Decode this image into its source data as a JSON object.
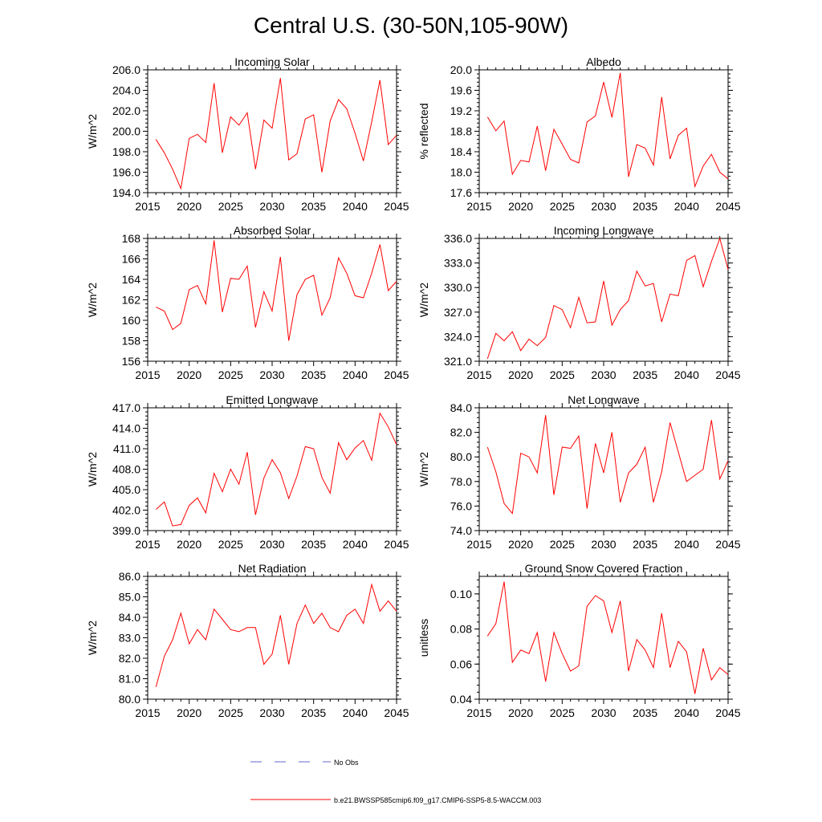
{
  "figure_title": "Central U.S. (30-50N,105-90W)",
  "legend": {
    "obs_label": "No Obs",
    "obs_color": "#6666cc",
    "model_label": "b.e21.BWSSP585cmip6.f09_g17.CMIP6-SSP5-8.5-WACCM.003",
    "model_color": "#ff0000"
  },
  "chart_data": [
    {
      "type": "line",
      "title": "Incoming Solar",
      "ylabel": "W/m^2",
      "xlabel": "",
      "xlim": [
        2015,
        2045
      ],
      "ylim": [
        194.0,
        206.0
      ],
      "yticks": [
        194.0,
        196.0,
        198.0,
        200.0,
        202.0,
        204.0,
        206.0
      ],
      "ytick_labels": [
        "194.0",
        "196.0",
        "198.0",
        "200.0",
        "202.0",
        "204.0",
        "206.0"
      ],
      "xticks": [
        2015,
        2020,
        2025,
        2030,
        2035,
        2040,
        2045
      ],
      "x": [
        2016,
        2017,
        2018,
        2019,
        2020,
        2021,
        2022,
        2023,
        2024,
        2025,
        2026,
        2027,
        2028,
        2029,
        2030,
        2031,
        2032,
        2033,
        2034,
        2035,
        2036,
        2037,
        2038,
        2039,
        2040,
        2041,
        2042,
        2043,
        2044,
        2045
      ],
      "series": [
        {
          "name": "b.e21.BWSSP585cmip6.f09_g17.CMIP6-SSP5-8.5-WACCM.003",
          "values": [
            199.2,
            197.9,
            196.3,
            194.4,
            199.3,
            199.7,
            198.9,
            204.7,
            197.9,
            201.4,
            200.6,
            201.8,
            196.3,
            201.1,
            200.3,
            205.2,
            197.2,
            197.8,
            201.2,
            201.6,
            196.0,
            201.0,
            203.1,
            202.2,
            199.8,
            197.1,
            200.9,
            205.0,
            198.7,
            199.6
          ]
        }
      ]
    },
    {
      "type": "line",
      "title": "Albedo",
      "ylabel": "% reflected",
      "xlabel": "",
      "xlim": [
        2015,
        2045
      ],
      "ylim": [
        17.6,
        20.0
      ],
      "yticks": [
        17.6,
        18.0,
        18.4,
        18.8,
        19.2,
        19.6,
        20.0
      ],
      "ytick_labels": [
        "17.6",
        "18.0",
        "18.4",
        "18.8",
        "19.2",
        "19.6",
        "20.0"
      ],
      "xticks": [
        2015,
        2020,
        2025,
        2030,
        2035,
        2040,
        2045
      ],
      "x": [
        2016,
        2017,
        2018,
        2019,
        2020,
        2021,
        2022,
        2023,
        2024,
        2025,
        2026,
        2027,
        2028,
        2029,
        2030,
        2031,
        2032,
        2033,
        2034,
        2035,
        2036,
        2037,
        2038,
        2039,
        2040,
        2041,
        2042,
        2043,
        2044,
        2045
      ],
      "series": [
        {
          "name": "b.e21.BWSSP585cmip6.f09_g17.CMIP6-SSP5-8.5-WACCM.003",
          "values": [
            19.08,
            18.81,
            19.0,
            17.96,
            18.23,
            18.2,
            18.9,
            18.03,
            18.84,
            18.55,
            18.25,
            18.18,
            18.98,
            19.1,
            19.76,
            19.07,
            19.94,
            17.91,
            18.54,
            18.47,
            18.14,
            19.47,
            18.26,
            18.72,
            18.86,
            17.72,
            18.12,
            18.35,
            18.0,
            17.87
          ]
        }
      ]
    },
    {
      "type": "line",
      "title": "Absorbed Solar",
      "ylabel": "W/m^2",
      "xlabel": "",
      "xlim": [
        2015,
        2045
      ],
      "ylim": [
        156,
        168
      ],
      "yticks": [
        156,
        158,
        160,
        162,
        164,
        166,
        168
      ],
      "ytick_labels": [
        "156",
        "158",
        "160",
        "162",
        "164",
        "166",
        "168"
      ],
      "xticks": [
        2015,
        2020,
        2025,
        2030,
        2035,
        2040,
        2045
      ],
      "x": [
        2016,
        2017,
        2018,
        2019,
        2020,
        2021,
        2022,
        2023,
        2024,
        2025,
        2026,
        2027,
        2028,
        2029,
        2030,
        2031,
        2032,
        2033,
        2034,
        2035,
        2036,
        2037,
        2038,
        2039,
        2040,
        2041,
        2042,
        2043,
        2044,
        2045
      ],
      "series": [
        {
          "name": "b.e21.BWSSP585cmip6.f09_g17.CMIP6-SSP5-8.5-WACCM.003",
          "values": [
            161.3,
            160.9,
            159.1,
            159.7,
            163.0,
            163.4,
            161.6,
            167.8,
            160.8,
            164.1,
            164.0,
            165.3,
            159.3,
            162.8,
            160.9,
            166.2,
            158.0,
            162.5,
            164.0,
            164.4,
            160.5,
            162.2,
            166.1,
            164.6,
            162.4,
            162.2,
            164.6,
            167.4,
            162.9,
            163.8
          ]
        }
      ]
    },
    {
      "type": "line",
      "title": "Incoming Longwave",
      "ylabel": "W/m^2",
      "xlabel": "",
      "xlim": [
        2015,
        2045
      ],
      "ylim": [
        321.0,
        336.0
      ],
      "yticks": [
        321.0,
        324.0,
        327.0,
        330.0,
        333.0,
        336.0
      ],
      "ytick_labels": [
        "321.0",
        "324.0",
        "327.0",
        "330.0",
        "333.0",
        "336.0"
      ],
      "xticks": [
        2015,
        2020,
        2025,
        2030,
        2035,
        2040,
        2045
      ],
      "x": [
        2016,
        2017,
        2018,
        2019,
        2020,
        2021,
        2022,
        2023,
        2024,
        2025,
        2026,
        2027,
        2028,
        2029,
        2030,
        2031,
        2032,
        2033,
        2034,
        2035,
        2036,
        2037,
        2038,
        2039,
        2040,
        2041,
        2042,
        2043,
        2044,
        2045
      ],
      "series": [
        {
          "name": "b.e21.BWSSP585cmip6.f09_g17.CMIP6-SSP5-8.5-WACCM.003",
          "values": [
            321.3,
            324.4,
            323.5,
            324.6,
            322.3,
            323.7,
            322.9,
            323.9,
            327.8,
            327.3,
            325.1,
            328.8,
            325.7,
            325.8,
            330.8,
            325.4,
            327.3,
            328.4,
            332.0,
            330.2,
            330.5,
            325.8,
            329.2,
            329.0,
            333.3,
            333.9,
            330.1,
            333.2,
            336.0,
            332.2
          ]
        }
      ]
    },
    {
      "type": "line",
      "title": "Emitted Longwave",
      "ylabel": "W/m^2",
      "xlabel": "",
      "xlim": [
        2015,
        2045
      ],
      "ylim": [
        399.0,
        417.0
      ],
      "yticks": [
        399.0,
        402.0,
        405.0,
        408.0,
        411.0,
        414.0,
        417.0
      ],
      "ytick_labels": [
        "399.0",
        "402.0",
        "405.0",
        "408.0",
        "411.0",
        "414.0",
        "417.0"
      ],
      "xticks": [
        2015,
        2020,
        2025,
        2030,
        2035,
        2040,
        2045
      ],
      "x": [
        2016,
        2017,
        2018,
        2019,
        2020,
        2021,
        2022,
        2023,
        2024,
        2025,
        2026,
        2027,
        2028,
        2029,
        2030,
        2031,
        2032,
        2033,
        2034,
        2035,
        2036,
        2037,
        2038,
        2039,
        2040,
        2041,
        2042,
        2043,
        2044,
        2045
      ],
      "series": [
        {
          "name": "b.e21.BWSSP585cmip6.f09_g17.CMIP6-SSP5-8.5-WACCM.003",
          "values": [
            402.1,
            403.2,
            399.7,
            399.9,
            402.7,
            403.8,
            401.6,
            407.4,
            404.7,
            408.0,
            405.8,
            410.5,
            401.3,
            406.7,
            409.4,
            407.5,
            403.7,
            407.0,
            411.3,
            411.0,
            406.8,
            404.5,
            411.9,
            409.4,
            411.1,
            412.2,
            409.3,
            416.2,
            414.2,
            411.6
          ]
        }
      ]
    },
    {
      "type": "line",
      "title": "Net Longwave",
      "ylabel": "W/m^2",
      "xlabel": "",
      "xlim": [
        2015,
        2045
      ],
      "ylim": [
        74.0,
        84.0
      ],
      "yticks": [
        74.0,
        76.0,
        78.0,
        80.0,
        82.0,
        84.0
      ],
      "ytick_labels": [
        "74.0",
        "76.0",
        "78.0",
        "80.0",
        "82.0",
        "84.0"
      ],
      "xticks": [
        2015,
        2020,
        2025,
        2030,
        2035,
        2040,
        2045
      ],
      "x": [
        2016,
        2017,
        2018,
        2019,
        2020,
        2021,
        2022,
        2023,
        2024,
        2025,
        2026,
        2027,
        2028,
        2029,
        2030,
        2031,
        2032,
        2033,
        2034,
        2035,
        2036,
        2037,
        2038,
        2039,
        2040,
        2041,
        2042,
        2043,
        2044,
        2045
      ],
      "series": [
        {
          "name": "b.e21.BWSSP585cmip6.f09_g17.CMIP6-SSP5-8.5-WACCM.003",
          "values": [
            80.8,
            78.8,
            76.2,
            75.4,
            80.3,
            80.0,
            78.7,
            83.4,
            76.9,
            80.8,
            80.7,
            81.7,
            75.8,
            81.1,
            78.7,
            82.0,
            76.3,
            78.7,
            79.4,
            80.8,
            76.3,
            78.8,
            82.8,
            80.4,
            78.0,
            78.5,
            79.0,
            83.0,
            78.2,
            79.7
          ]
        }
      ]
    },
    {
      "type": "line",
      "title": "Net Radiation",
      "ylabel": "W/m^2",
      "xlabel": "",
      "xlim": [
        2015,
        2045
      ],
      "ylim": [
        80.0,
        86.0
      ],
      "yticks": [
        80.0,
        81.0,
        82.0,
        83.0,
        84.0,
        85.0,
        86.0
      ],
      "ytick_labels": [
        "80.0",
        "81.0",
        "82.0",
        "83.0",
        "84.0",
        "85.0",
        "86.0"
      ],
      "xticks": [
        2015,
        2020,
        2025,
        2030,
        2035,
        2040,
        2045
      ],
      "x": [
        2016,
        2017,
        2018,
        2019,
        2020,
        2021,
        2022,
        2023,
        2024,
        2025,
        2026,
        2027,
        2028,
        2029,
        2030,
        2031,
        2032,
        2033,
        2034,
        2035,
        2036,
        2037,
        2038,
        2039,
        2040,
        2041,
        2042,
        2043,
        2044,
        2045
      ],
      "series": [
        {
          "name": "b.e21.BWSSP585cmip6.f09_g17.CMIP6-SSP5-8.5-WACCM.003",
          "values": [
            80.6,
            82.1,
            82.9,
            84.2,
            82.7,
            83.4,
            82.9,
            84.4,
            83.9,
            83.4,
            83.3,
            83.5,
            83.5,
            81.7,
            82.2,
            84.1,
            81.7,
            83.7,
            84.6,
            83.7,
            84.2,
            83.5,
            83.3,
            84.1,
            84.4,
            83.7,
            85.6,
            84.3,
            84.8,
            84.3
          ]
        }
      ]
    },
    {
      "type": "line",
      "title": "Ground Snow Covered Fraction",
      "ylabel": "unitless",
      "xlabel": "",
      "xlim": [
        2015,
        2045
      ],
      "ylim": [
        0.04,
        0.11
      ],
      "yticks": [
        0.04,
        0.06,
        0.08,
        0.1
      ],
      "ytick_labels": [
        "0.04",
        "0.06",
        "0.08",
        "0.10"
      ],
      "xticks": [
        2015,
        2020,
        2025,
        2030,
        2035,
        2040,
        2045
      ],
      "x": [
        2016,
        2017,
        2018,
        2019,
        2020,
        2021,
        2022,
        2023,
        2024,
        2025,
        2026,
        2027,
        2028,
        2029,
        2030,
        2031,
        2032,
        2033,
        2034,
        2035,
        2036,
        2037,
        2038,
        2039,
        2040,
        2041,
        2042,
        2043,
        2044,
        2045
      ],
      "series": [
        {
          "name": "b.e21.BWSSP585cmip6.f09_g17.CMIP6-SSP5-8.5-WACCM.003",
          "values": [
            0.076,
            0.083,
            0.107,
            0.061,
            0.068,
            0.066,
            0.078,
            0.05,
            0.078,
            0.066,
            0.056,
            0.059,
            0.093,
            0.099,
            0.096,
            0.078,
            0.096,
            0.056,
            0.074,
            0.068,
            0.058,
            0.089,
            0.058,
            0.073,
            0.067,
            0.043,
            0.069,
            0.051,
            0.058,
            0.054
          ]
        }
      ]
    }
  ]
}
